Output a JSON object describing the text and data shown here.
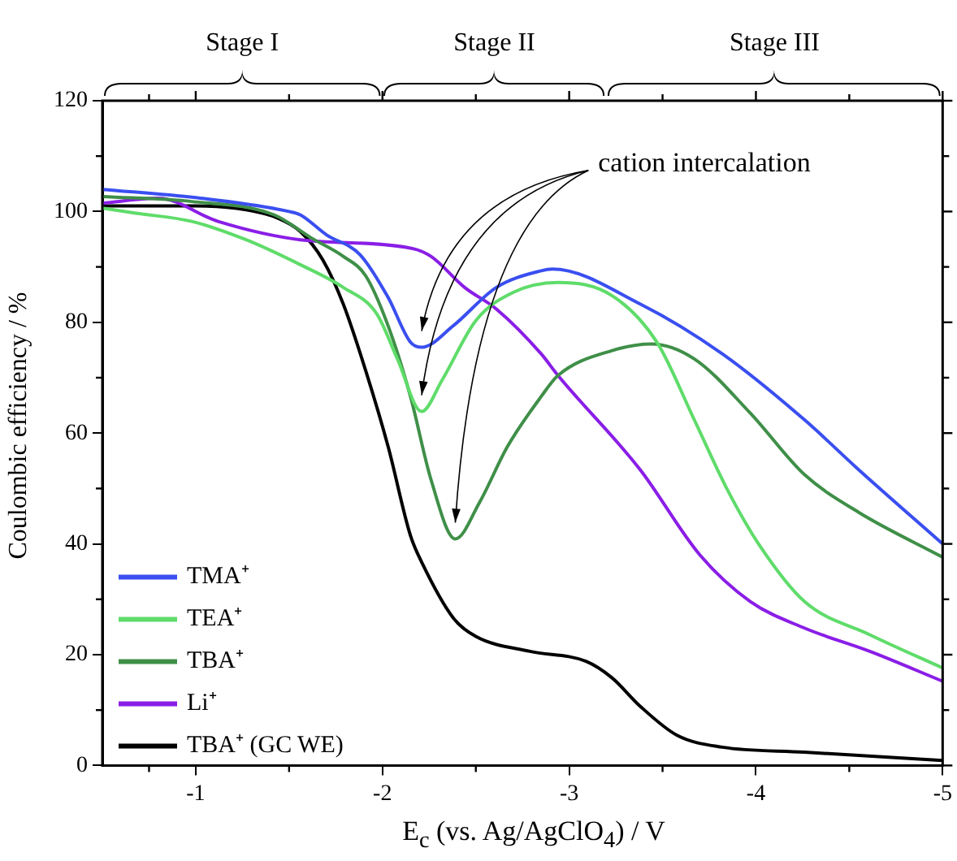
{
  "chart_data": {
    "type": "line",
    "xlabel": "E$_{c}$ (vs. Ag/AgClO$_{4}$) / V",
    "ylabel": "Coulombic efficiency / %",
    "xlim": [
      -0.5,
      -5
    ],
    "xticks": [
      -1,
      -2,
      -3,
      -4,
      -5
    ],
    "ylim": [
      0,
      120
    ],
    "yticks": [
      0,
      20,
      40,
      60,
      80,
      100,
      120
    ],
    "grid": false,
    "legend": "bottom left",
    "marker": "none",
    "line_style": "solid",
    "annotations": [
      "Stage I",
      "Stage II",
      "Stage III",
      "cation intercalation"
    ],
    "series": [
      {
        "name": "TMA⁺",
        "color": "#3a4ff0",
        "x": [
          -0.5,
          -1,
          -1.5,
          -1.56,
          -1.7,
          -1.88,
          -2.03,
          -2.15,
          -2.21,
          -2.38,
          -2.61,
          -2.85,
          -2.91,
          -3.38,
          -3.82,
          -4.26,
          -4.55,
          -5
        ],
        "values": [
          104,
          102.5,
          100,
          99.4,
          95.8,
          92.2,
          84.5,
          76.4,
          75.5,
          79.4,
          86.3,
          89.3,
          89.6,
          83.3,
          74.3,
          62.4,
          53.4,
          40
        ]
      },
      {
        "name": "TEA⁺",
        "color": "#5fdc6a",
        "x": [
          -0.5,
          -0.68,
          -0.98,
          -1.27,
          -1.56,
          -1.79,
          -1.97,
          -2.08,
          -2.21,
          -2.32,
          -2.5,
          -2.7,
          -2.94,
          -3.23,
          -3.47,
          -3.67,
          -3.85,
          -4.02,
          -4.26,
          -4.61,
          -5
        ],
        "values": [
          100.6,
          99.7,
          98.2,
          94.9,
          90.4,
          86.3,
          81.5,
          73.4,
          63.9,
          69.6,
          80.3,
          85.4,
          87.2,
          84.8,
          76.4,
          62.4,
          49.6,
          39.7,
          29.6,
          23.6,
          17.6
        ]
      },
      {
        "name": "TBA⁺",
        "color": "#3f8f48",
        "x": [
          -0.5,
          -0.98,
          -1.42,
          -1.62,
          -1.79,
          -1.91,
          -2.03,
          -2.15,
          -2.26,
          -2.39,
          -2.52,
          -2.67,
          -2.85,
          -2.94,
          -3.23,
          -3.44,
          -3.67,
          -3.97,
          -4.26,
          -4.55,
          -5
        ],
        "values": [
          102.7,
          101.8,
          99.4,
          95.2,
          91.9,
          88.4,
          79.4,
          66.6,
          51.6,
          40.9,
          47.5,
          57.6,
          66.6,
          70.4,
          74.9,
          76.1,
          73.4,
          63.6,
          52.5,
          45.7,
          37.6
        ]
      },
      {
        "name": "Li⁺",
        "color": "#8a1ee6",
        "x": [
          -0.5,
          -0.8,
          -1.12,
          -1.56,
          -2.15,
          -2.26,
          -2.44,
          -2.61,
          -2.85,
          -2.94,
          -3.38,
          -3.7,
          -3.97,
          -4.26,
          -4.61,
          -5
        ],
        "values": [
          101.5,
          102.4,
          98.2,
          94.9,
          93.4,
          91.9,
          86.3,
          82.4,
          74.3,
          70.4,
          53.4,
          38,
          29.6,
          24.8,
          20.6,
          15.2
        ]
      },
      {
        "name": "TBA⁺ (GC WE)",
        "color": "#000000",
        "x": [
          -0.5,
          -1,
          -1.27,
          -1.44,
          -1.56,
          -1.68,
          -1.79,
          -1.91,
          -2.03,
          -2.15,
          -2.21,
          -2.38,
          -2.5,
          -2.79,
          -3.09,
          -3.23,
          -3.38,
          -3.58,
          -3.82,
          -4.26,
          -5
        ],
        "values": [
          101,
          101,
          100.3,
          98.8,
          96.4,
          91.3,
          83.3,
          71.3,
          57.6,
          41.5,
          36.7,
          26.6,
          23.3,
          20.6,
          18.8,
          15.8,
          10.7,
          5.4,
          3.3,
          2.4,
          0.9
        ]
      }
    ]
  }
}
